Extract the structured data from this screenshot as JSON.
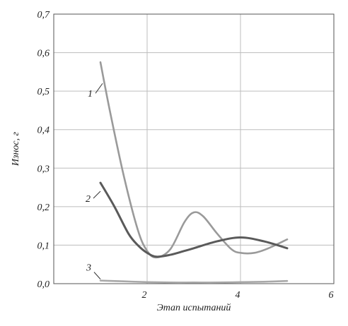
{
  "chart_data": {
    "type": "line",
    "title": "",
    "xlabel": "Этап испытаний",
    "ylabel": "Износ, г",
    "xlim": [
      0,
      6
    ],
    "ylim": [
      0,
      0.7
    ],
    "x_ticks": [
      {
        "value": 2,
        "label": "2"
      },
      {
        "value": 4,
        "label": "4"
      },
      {
        "value": 6,
        "label": "6"
      }
    ],
    "y_ticks": [
      {
        "value": 0.0,
        "label": "0,0"
      },
      {
        "value": 0.1,
        "label": "0,1"
      },
      {
        "value": 0.2,
        "label": "0,2"
      },
      {
        "value": 0.3,
        "label": "0,3"
      },
      {
        "value": 0.4,
        "label": "0,4"
      },
      {
        "value": 0.5,
        "label": "0,5"
      },
      {
        "value": 0.6,
        "label": "0,6"
      },
      {
        "value": 0.7,
        "label": "0,7"
      }
    ],
    "grid": true,
    "series": [
      {
        "label": "1",
        "color": "#9a9a9a",
        "x": [
          1,
          1.2,
          1.5,
          1.8,
          2.0,
          2.2,
          2.5,
          2.8,
          3.0,
          3.2,
          3.5,
          3.8,
          4.0,
          4.3,
          4.6,
          5.0
        ],
        "y": [
          0.575,
          0.45,
          0.28,
          0.14,
          0.085,
          0.068,
          0.09,
          0.16,
          0.185,
          0.175,
          0.13,
          0.09,
          0.08,
          0.08,
          0.092,
          0.115
        ]
      },
      {
        "label": "2",
        "color": "#5a5a5a",
        "x": [
          1,
          1.3,
          1.6,
          1.8,
          2.0,
          2.2,
          2.5,
          2.8,
          3.0,
          3.5,
          4.0,
          4.5,
          5.0
        ],
        "y": [
          0.262,
          0.2,
          0.13,
          0.1,
          0.08,
          0.07,
          0.075,
          0.085,
          0.092,
          0.11,
          0.12,
          0.11,
          0.092
        ]
      },
      {
        "label": "3",
        "color": "#a8a8a8",
        "x": [
          1,
          1.5,
          2.0,
          2.5,
          3.0,
          3.5,
          4.0,
          4.5,
          5.0
        ],
        "y": [
          0.008,
          0.006,
          0.004,
          0.003,
          0.003,
          0.003,
          0.004,
          0.005,
          0.007
        ]
      }
    ]
  }
}
